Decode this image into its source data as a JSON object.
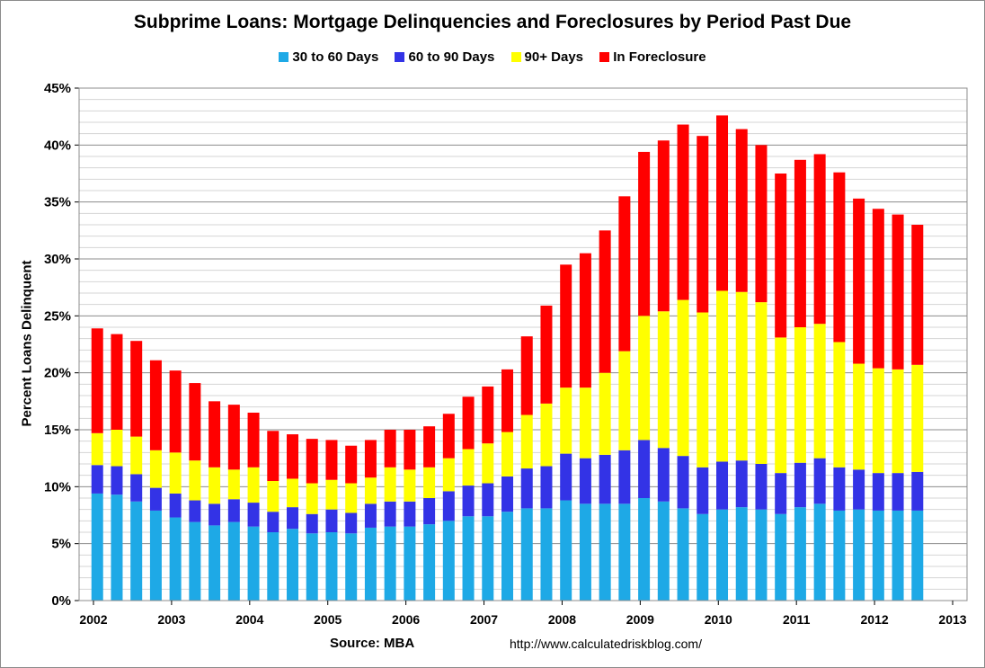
{
  "chart_data": {
    "type": "bar",
    "stacked": true,
    "title": "Subprime Loans: Mortgage Delinquencies and Foreclosures by Period Past Due",
    "ylabel": "Percent Loans Delinquent",
    "xlabel": "",
    "ylim": [
      0,
      45
    ],
    "yticks": [
      "0%",
      "5%",
      "10%",
      "15%",
      "20%",
      "25%",
      "30%",
      "35%",
      "40%",
      "45%"
    ],
    "xlim": [
      2002,
      2013
    ],
    "xticks": [
      "2002",
      "2003",
      "2004",
      "2005",
      "2006",
      "2007",
      "2008",
      "2009",
      "2010",
      "2011",
      "2012",
      "2013"
    ],
    "grid": true,
    "legend": "top",
    "x": [
      "2002 Q1",
      "2002 Q2",
      "2002 Q3",
      "2002 Q4",
      "2003 Q1",
      "2003 Q2",
      "2003 Q3",
      "2003 Q4",
      "2004 Q1",
      "2004 Q2",
      "2004 Q3",
      "2004 Q4",
      "2005 Q1",
      "2005 Q2",
      "2005 Q3",
      "2005 Q4",
      "2006 Q1",
      "2006 Q2",
      "2006 Q3",
      "2006 Q4",
      "2007 Q1",
      "2007 Q2",
      "2007 Q3",
      "2007 Q4",
      "2008 Q1",
      "2008 Q2",
      "2008 Q3",
      "2008 Q4",
      "2009 Q1",
      "2009 Q2",
      "2009 Q3",
      "2009 Q4",
      "2010 Q1",
      "2010 Q2",
      "2010 Q3",
      "2010 Q4",
      "2011 Q1",
      "2011 Q2",
      "2011 Q3",
      "2011 Q4",
      "2012 Q1",
      "2012 Q2",
      "2012 Q3"
    ],
    "series": [
      {
        "name": "30 to 60 Days",
        "color": "#1EA9E6",
        "values": [
          9.4,
          9.3,
          8.7,
          7.9,
          7.3,
          6.9,
          6.6,
          6.9,
          6.5,
          6.0,
          6.3,
          5.9,
          6.0,
          5.9,
          6.4,
          6.5,
          6.5,
          6.7,
          7.0,
          7.4,
          7.4,
          7.8,
          8.1,
          8.1,
          8.8,
          8.5,
          8.5,
          8.5,
          9.0,
          8.7,
          8.1,
          7.6,
          8.0,
          8.2,
          8.0,
          7.6,
          8.2,
          8.5,
          7.9,
          8.0,
          7.9,
          7.9,
          7.9
        ]
      },
      {
        "name": "60 to 90 Days",
        "color": "#3333E6",
        "values": [
          2.5,
          2.5,
          2.4,
          2.0,
          2.1,
          1.9,
          1.9,
          2.0,
          2.1,
          1.8,
          1.9,
          1.7,
          2.0,
          1.8,
          2.1,
          2.2,
          2.2,
          2.3,
          2.6,
          2.7,
          2.9,
          3.1,
          3.5,
          3.7,
          4.1,
          4.0,
          4.3,
          4.7,
          5.1,
          4.7,
          4.6,
          4.1,
          4.2,
          4.1,
          4.0,
          3.6,
          3.9,
          4.0,
          3.8,
          3.5,
          3.3,
          3.3,
          3.4
        ]
      },
      {
        "name": "90+ Days",
        "color": "#FFFF00",
        "values": [
          2.8,
          3.2,
          3.3,
          3.3,
          3.6,
          3.5,
          3.2,
          2.6,
          3.1,
          2.7,
          2.5,
          2.7,
          2.6,
          2.6,
          2.3,
          3.0,
          2.8,
          2.7,
          2.9,
          3.2,
          3.5,
          3.9,
          4.7,
          5.5,
          5.8,
          6.2,
          7.2,
          8.7,
          10.9,
          12.0,
          13.7,
          13.6,
          15.0,
          14.8,
          14.2,
          11.9,
          11.9,
          11.8,
          11.0,
          9.3,
          9.2,
          9.1,
          9.4
        ]
      },
      {
        "name": "In Foreclosure",
        "color": "#FF0000",
        "values": [
          9.2,
          8.4,
          8.4,
          7.9,
          7.2,
          6.8,
          5.8,
          5.7,
          4.8,
          4.4,
          3.9,
          3.9,
          3.5,
          3.3,
          3.3,
          3.3,
          3.5,
          3.6,
          3.9,
          4.6,
          5.0,
          5.5,
          6.9,
          8.6,
          10.8,
          11.8,
          12.5,
          13.6,
          14.4,
          15.0,
          15.4,
          15.5,
          15.4,
          14.3,
          13.8,
          14.4,
          14.7,
          14.9,
          14.9,
          14.5,
          14.0,
          13.6,
          12.3
        ]
      }
    ]
  },
  "source_label": "Source: MBA",
  "url_label": "http://www.calculatedriskblog.com/"
}
